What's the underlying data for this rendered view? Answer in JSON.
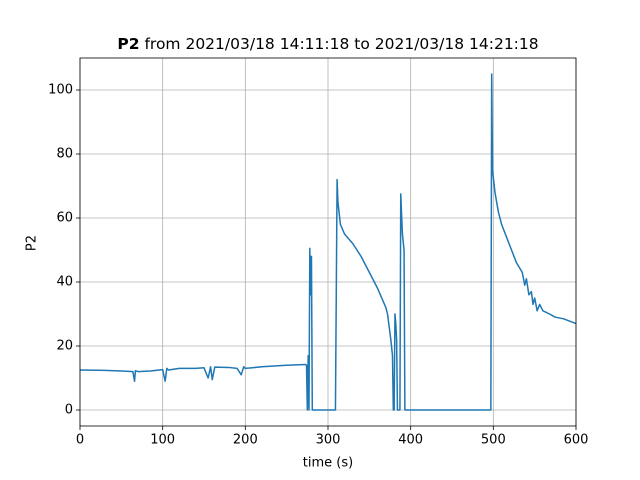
{
  "chart_data": {
    "type": "line",
    "title_bold": "P2",
    "title": "from 2021/03/18 14:11:18 to 2021/03/18 14:21:18",
    "xlabel": "time (s)",
    "ylabel": "P2",
    "xlim": [
      0,
      600
    ],
    "ylim": [
      -5,
      110
    ],
    "xticks": [
      0,
      100,
      200,
      300,
      400,
      500,
      600
    ],
    "yticks": [
      0,
      20,
      40,
      60,
      80,
      100
    ],
    "grid": true,
    "series": [
      {
        "name": "P2",
        "color": "#1f77b4",
        "x": [
          0,
          30,
          50,
          64,
          66,
          67,
          70,
          85,
          100,
          103,
          105,
          107,
          120,
          140,
          150,
          155,
          158,
          160,
          163,
          180,
          190,
          195,
          198,
          200,
          220,
          250,
          273,
          274,
          275,
          276,
          277,
          278,
          279,
          280,
          281,
          282,
          300,
          309,
          311,
          312,
          315,
          320,
          330,
          340,
          350,
          360,
          365,
          370,
          372,
          374,
          376,
          378,
          379,
          380,
          381,
          382,
          383,
          384,
          386,
          387,
          388,
          390,
          392,
          393,
          450,
          497,
          498,
          499,
          502,
          506,
          510,
          516,
          522,
          528,
          535,
          538,
          540,
          543,
          546,
          548,
          550,
          553,
          556,
          560,
          568,
          575,
          585,
          600
        ],
        "values": [
          12.5,
          12.4,
          12.2,
          12,
          9,
          12.3,
          12,
          12.2,
          12.6,
          9,
          13,
          12.5,
          13,
          13,
          13.2,
          10,
          13.5,
          9.5,
          13.4,
          13.3,
          13,
          11,
          13.5,
          13,
          13.5,
          14,
          14.2,
          14,
          0,
          17,
          0,
          50.5,
          36,
          48,
          0,
          0,
          0,
          0,
          72,
          65,
          58,
          55,
          52,
          48,
          43,
          38,
          35,
          32,
          30,
          26,
          22,
          17,
          0,
          0,
          30,
          27,
          22,
          0,
          0,
          0,
          67.5,
          55,
          50,
          0,
          0,
          0,
          105,
          75,
          68,
          62,
          58,
          54,
          50,
          46,
          43,
          39,
          41,
          36,
          37,
          33,
          35,
          31,
          33,
          31,
          30,
          29,
          28.5,
          27
        ]
      }
    ]
  }
}
